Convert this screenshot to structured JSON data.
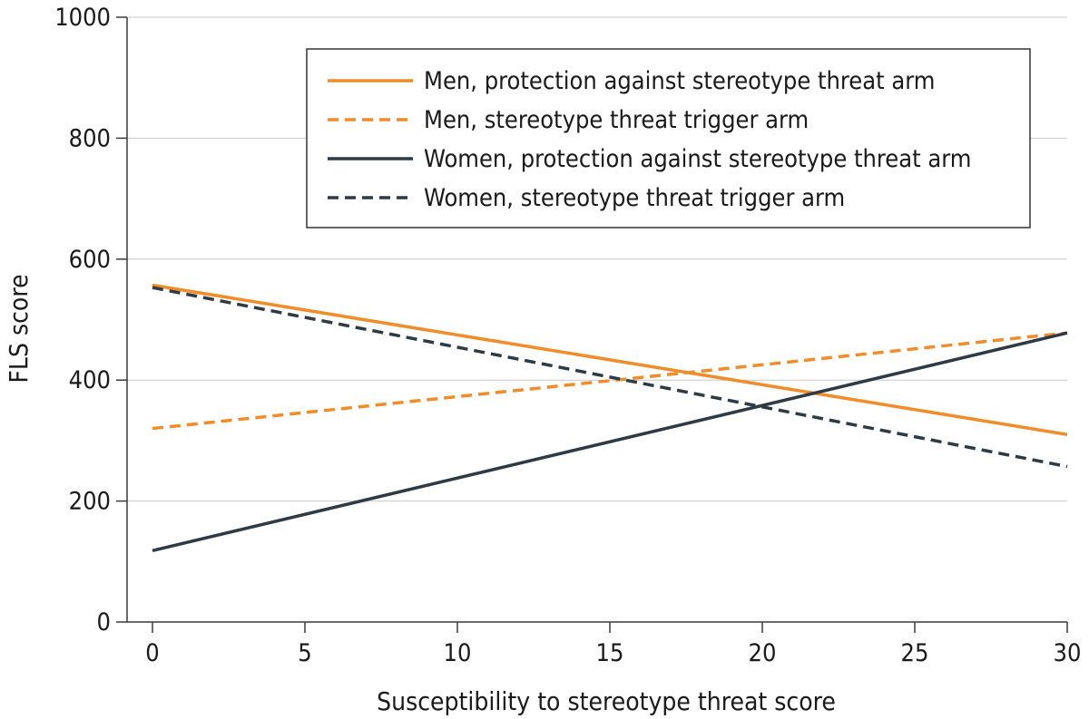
{
  "chart_data": {
    "type": "line",
    "xlabel": "Susceptibility to stereotype threat score",
    "ylabel": "FLS score",
    "xlim": [
      0,
      30
    ],
    "ylim": [
      0,
      1000
    ],
    "xticks": [
      0,
      5,
      10,
      15,
      20,
      25,
      30
    ],
    "yticks": [
      0,
      200,
      400,
      600,
      800,
      1000
    ],
    "grid": "horizontal",
    "legend_position": "top-right",
    "series": [
      {
        "name": "Men, protection against stereotype threat arm",
        "x": [
          0,
          30
        ],
        "y": [
          557,
          310
        ],
        "color": "#f28c28",
        "dash": "solid"
      },
      {
        "name": "Men, stereotype threat trigger arm",
        "x": [
          0,
          30
        ],
        "y": [
          320,
          478
        ],
        "color": "#f28c28",
        "dash": "dashed"
      },
      {
        "name": "Women, protection against stereotype threat arm",
        "x": [
          0,
          30
        ],
        "y": [
          118,
          478
        ],
        "color": "#2e3a44",
        "dash": "solid"
      },
      {
        "name": "Women, stereotype threat trigger arm",
        "x": [
          0,
          30
        ],
        "y": [
          553,
          257
        ],
        "color": "#2e3a44",
        "dash": "dashed"
      }
    ]
  }
}
